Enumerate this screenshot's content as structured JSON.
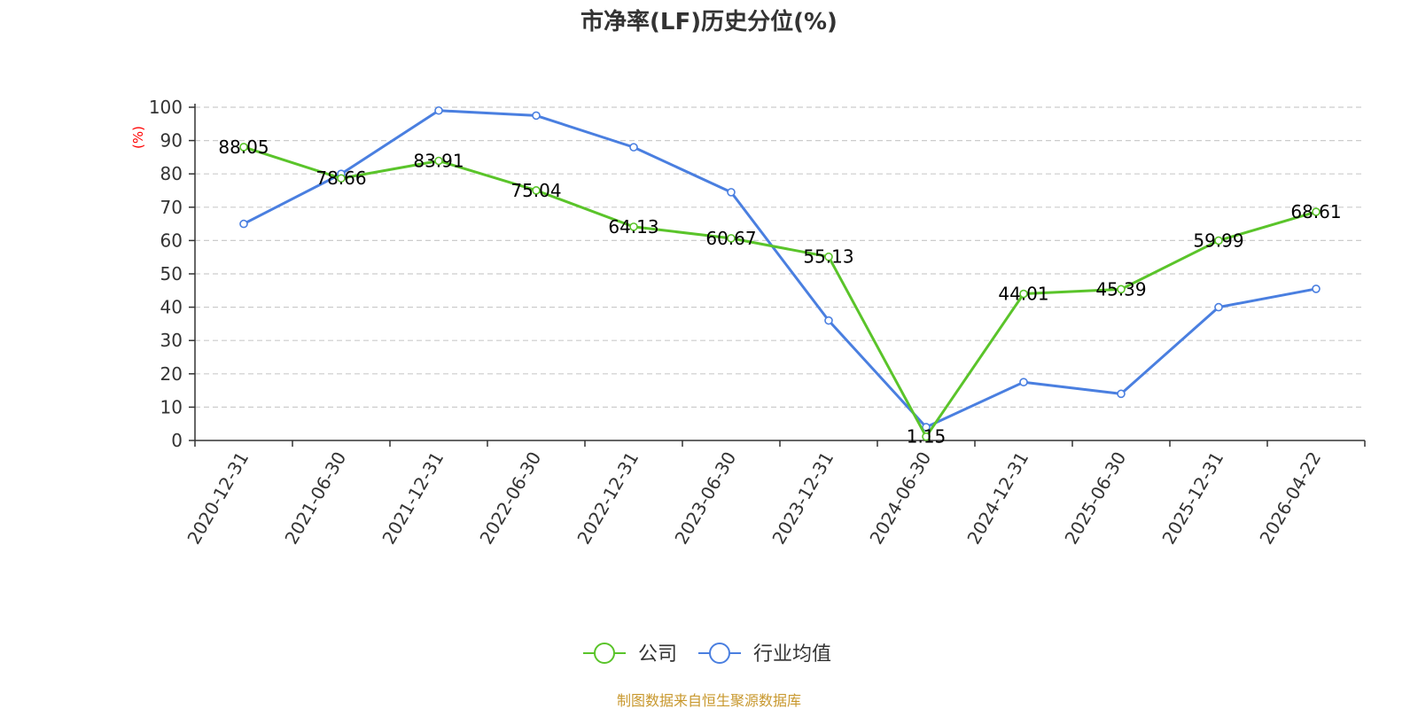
{
  "chart_data": {
    "type": "line",
    "title": "市净率(LF)历史分位(%)",
    "ylabel": "(%)",
    "ylim": [
      0,
      100
    ],
    "yticks": [
      0,
      10,
      20,
      30,
      40,
      50,
      60,
      70,
      80,
      90,
      100
    ],
    "grid": true,
    "legend_position": "bottom",
    "categories": [
      "2020-12-31",
      "2021-06-30",
      "2021-12-31",
      "2022-06-30",
      "2022-12-31",
      "2023-06-30",
      "2023-12-31",
      "2024-06-30",
      "2024-12-31",
      "2025-06-30",
      "2025-12-31",
      "2026-04-22"
    ],
    "series": [
      {
        "name": "公司",
        "color": "#5ac42a",
        "values": [
          88.05,
          78.66,
          83.91,
          75.04,
          64.13,
          60.67,
          55.13,
          1.15,
          44.01,
          45.39,
          59.99,
          68.61
        ],
        "labels": [
          "88.05",
          "78.66",
          "83.91",
          "75.04",
          "64.13",
          "60.67",
          "55.13",
          "1.15",
          "44.01",
          "45.39",
          "59.99",
          "68.61"
        ],
        "show_labels": true
      },
      {
        "name": "行业均值",
        "color": "#4a7fe0",
        "values": [
          65,
          80,
          99,
          97.5,
          88,
          74.5,
          36,
          4,
          17.5,
          14,
          40,
          45.5
        ],
        "show_labels": false
      }
    ],
    "source": "制图数据来自恒生聚源数据库",
    "colors": {
      "ylabel": "#ff0000",
      "source": "#c8982e",
      "grid": "#cccccc",
      "axis": "#333333"
    }
  }
}
